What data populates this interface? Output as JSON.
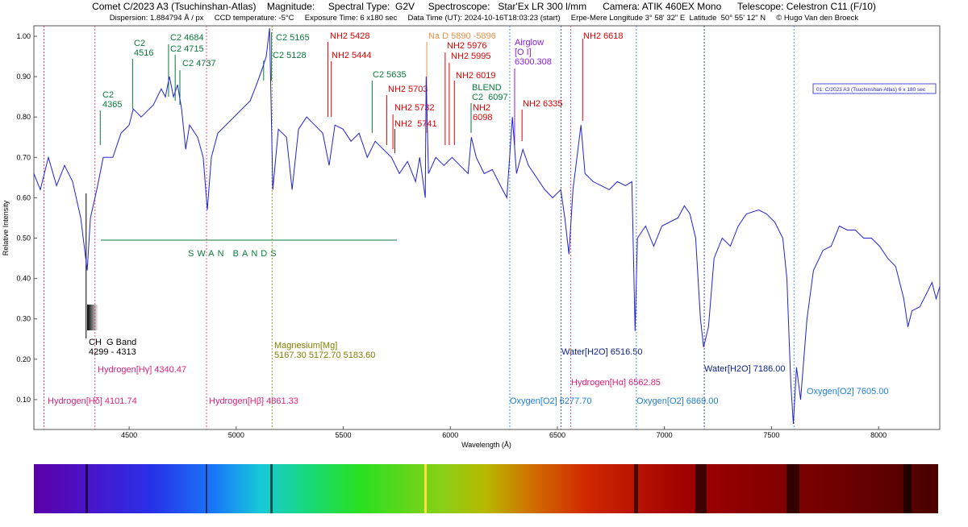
{
  "chart_data": {
    "type": "line",
    "title": "Comet C/2023 A3 (Tsuchinshan-Atlas)    Magnitude:     Spectral Type:  G2V     Spectroscope:   Star'Ex LR 300 l/mm      Camera: ATIK 460EX Mono      Telescope: Celestron C11 (F/10)",
    "subtitle": "Dispersion: 1.884794 Å / px     CCD temperature: -5°C     Exposure Time: 6 x180 sec     Data Time (UT): 2024-10-16T18:03:23 (start)     Erpe-Mere Longitude 3° 58' 32\" E  Latitude  50° 55' 12\" N     © Hugo Van den Broeck",
    "x_label": "Wavelength (Å)",
    "y_label": "Relative Intensity",
    "xlim": [
      4055,
      8286
    ],
    "ylim": [
      0.026,
      1.026
    ],
    "xticks": [
      4500,
      5000,
      5500,
      6000,
      6500,
      7000,
      7500,
      8000
    ],
    "yticks": [
      {
        "value": 0.1,
        "label": "0.10"
      },
      {
        "value": 0.2,
        "label": "0.20"
      },
      {
        "value": 0.3,
        "label": "0.30"
      },
      {
        "value": 0.4,
        "label": "0.40"
      },
      {
        "value": 0.5,
        "label": "0.50"
      },
      {
        "value": 0.6,
        "label": "0.60"
      },
      {
        "value": 0.7,
        "label": "0.70"
      },
      {
        "value": 0.8,
        "label": "0.80"
      },
      {
        "value": 0.9,
        "label": "0.90"
      },
      {
        "value": 1.0,
        "label": "1.00"
      }
    ],
    "grid": false,
    "legend": "upper right",
    "series": [
      {
        "name": "01: C/2023 A3 (Tsuchinshan-Atlas) 6 x 180 sec",
        "color": "#2222d0",
        "x": [
          4055,
          4085,
          4123,
          4161,
          4198,
          4236,
          4274,
          4304,
          4319,
          4349,
          4379,
          4424,
          4462,
          4500,
          4519,
          4556,
          4613,
          4650,
          4669,
          4688,
          4707,
          4726,
          4745,
          4764,
          4782,
          4820,
          4846,
          4865,
          4884,
          4914,
          4952,
          4990,
          5027,
          5065,
          5095,
          5122,
          5140,
          5156,
          5171,
          5197,
          5235,
          5261,
          5291,
          5329,
          5367,
          5404,
          5434,
          5461,
          5499,
          5536,
          5574,
          5612,
          5649,
          5687,
          5725,
          5762,
          5800,
          5838,
          5857,
          5883,
          5887,
          5898,
          5932,
          5970,
          6008,
          6045,
          6083,
          6098,
          6121,
          6158,
          6196,
          6234,
          6264,
          6290,
          6309,
          6339,
          6365,
          6403,
          6441,
          6478,
          6516,
          6535,
          6554,
          6573,
          6610,
          6629,
          6667,
          6705,
          6742,
          6780,
          6818,
          6848,
          6863,
          6874,
          6912,
          6950,
          6988,
          7025,
          7063,
          7093,
          7119,
          7146,
          7168,
          7183,
          7206,
          7232,
          7270,
          7308,
          7345,
          7383,
          7440,
          7477,
          7515,
          7553,
          7572,
          7590,
          7602,
          7617,
          7636,
          7666,
          7696,
          7741,
          7779,
          7817,
          7854,
          7892,
          7930,
          7967,
          8005,
          8043,
          8080,
          8118,
          8137,
          8156,
          8193,
          8212,
          8231,
          8250,
          8269,
          8286
        ],
        "values": [
          0.66,
          0.62,
          0.7,
          0.63,
          0.68,
          0.64,
          0.55,
          0.42,
          0.55,
          0.62,
          0.7,
          0.7,
          0.76,
          0.78,
          0.82,
          0.8,
          0.83,
          0.87,
          0.85,
          0.9,
          0.85,
          0.88,
          0.82,
          0.72,
          0.78,
          0.75,
          0.7,
          0.57,
          0.7,
          0.76,
          0.78,
          0.8,
          0.82,
          0.84,
          0.88,
          0.92,
          0.95,
          1.02,
          0.62,
          0.77,
          0.75,
          0.62,
          0.77,
          0.8,
          0.78,
          0.76,
          0.68,
          0.78,
          0.77,
          0.74,
          0.76,
          0.7,
          0.74,
          0.72,
          0.7,
          0.66,
          0.69,
          0.64,
          0.7,
          0.6,
          0.9,
          0.66,
          0.7,
          0.68,
          0.7,
          0.68,
          0.66,
          0.75,
          0.7,
          0.66,
          0.67,
          0.63,
          0.6,
          0.8,
          0.66,
          0.72,
          0.68,
          0.65,
          0.62,
          0.6,
          0.62,
          0.55,
          0.46,
          0.62,
          0.78,
          0.66,
          0.64,
          0.63,
          0.62,
          0.64,
          0.63,
          0.64,
          0.27,
          0.5,
          0.53,
          0.48,
          0.53,
          0.54,
          0.55,
          0.58,
          0.56,
          0.5,
          0.3,
          0.23,
          0.28,
          0.45,
          0.5,
          0.48,
          0.53,
          0.56,
          0.57,
          0.56,
          0.54,
          0.5,
          0.4,
          0.14,
          0.04,
          0.18,
          0.1,
          0.3,
          0.42,
          0.47,
          0.48,
          0.53,
          0.52,
          0.52,
          0.5,
          0.5,
          0.48,
          0.45,
          0.43,
          0.35,
          0.28,
          0.32,
          0.33,
          0.35,
          0.37,
          0.39,
          0.35,
          0.38
        ]
      }
    ],
    "swan_bands": "SWAN BANDS",
    "annotations": [
      {
        "lines": [
          "C2",
          "4365"
        ],
        "x": 4365,
        "color": "#0a7a3a"
      },
      {
        "lines": [
          "C2",
          "4516"
        ],
        "x": 4516,
        "color": "#0a7a3a"
      },
      {
        "lines": [
          "C2 4684"
        ],
        "x": 4684,
        "color": "#0a7a3a"
      },
      {
        "lines": [
          "C2 4715"
        ],
        "x": 4715,
        "color": "#0a7a3a"
      },
      {
        "lines": [
          "C2 4737"
        ],
        "x": 4737,
        "color": "#0a7a3a"
      },
      {
        "lines": [
          "C2 5165"
        ],
        "x": 5165,
        "color": "#0a7a3a"
      },
      {
        "lines": [
          "C2 5128"
        ],
        "x": 5128,
        "color": "#0a7a3a"
      },
      {
        "lines": [
          "C2 5635"
        ],
        "x": 5635,
        "color": "#0a7a3a"
      },
      {
        "lines": [
          "BLEND",
          "C2  6097"
        ],
        "x": 6097,
        "color": "#0a7a3a"
      },
      {
        "lines": [
          "NH2 5428"
        ],
        "x": 5428,
        "color": "#e00000"
      },
      {
        "lines": [
          "NH2 5444"
        ],
        "x": 5444,
        "color": "#e00000"
      },
      {
        "lines": [
          "NH2 5703"
        ],
        "x": 5703,
        "color": "#e00000"
      },
      {
        "lines": [
          "NH2 5732"
        ],
        "x": 5732,
        "color": "#e00000"
      },
      {
        "lines": [
          "NH2  5741"
        ],
        "x": 5741,
        "color": "#e00000"
      },
      {
        "lines": [
          "NH2 5976"
        ],
        "x": 5976,
        "color": "#e00000"
      },
      {
        "lines": [
          "NH2 5995"
        ],
        "x": 5995,
        "color": "#e00000"
      },
      {
        "lines": [
          "NH2 6019"
        ],
        "x": 6019,
        "color": "#e00000"
      },
      {
        "lines": [
          "NH2",
          "6098"
        ],
        "color": "#e00000"
      },
      {
        "lines": [
          "NH2 6335"
        ],
        "x": 6335,
        "color": "#e00000"
      },
      {
        "lines": [
          "NH2 6618"
        ],
        "x": 6618,
        "color": "#e00000"
      },
      {
        "lines": [
          "Na D 5890 -5896"
        ],
        "x": 5890,
        "color": "#f0904a"
      },
      {
        "lines": [
          "Airglow",
          "[O I]",
          "6300.308"
        ],
        "x": 6300.308,
        "color": "#8a1ee0"
      },
      {
        "lines": [
          "Hydrogen[Hδ] 4101.74"
        ],
        "x": 4101.74,
        "color": "#e0207a"
      },
      {
        "lines": [
          "Hydrogen[Hγ] 4340.47"
        ],
        "x": 4340.47,
        "color": "#e0207a"
      },
      {
        "lines": [
          "Hydrogen[Hβ] 4861.33"
        ],
        "x": 4861.33,
        "color": "#e0207a"
      },
      {
        "lines": [
          "Magnesium[Mg]",
          "5167.30 5172.70 5183.60"
        ],
        "x": 5167.3,
        "color": "#808000"
      },
      {
        "lines": [
          "Oxygen[O2] 6277.70"
        ],
        "x": 6277.7,
        "color": "#1e7fd8"
      },
      {
        "lines": [
          "Water[H2O] 6516.50"
        ],
        "x": 6516.5,
        "color": "#0a1f8f"
      },
      {
        "lines": [
          "Hydrogen[Hα] 6562.85"
        ],
        "x": 6562.85,
        "color": "#e0207a"
      },
      {
        "lines": [
          "Oxygen[O2] 6869.00"
        ],
        "x": 6869,
        "color": "#1e7fd8"
      },
      {
        "lines": [
          "Water[H2O] 7186.00"
        ],
        "x": 7186,
        "color": "#0a1f8f"
      },
      {
        "lines": [
          "Oxygen[O2] 7605.00"
        ],
        "x": 7605,
        "color": "#1e7fd8"
      },
      {
        "lines": [
          "CH  G Band",
          "4299 - 4313"
        ],
        "x": 4299,
        "color": "#000000"
      }
    ]
  }
}
